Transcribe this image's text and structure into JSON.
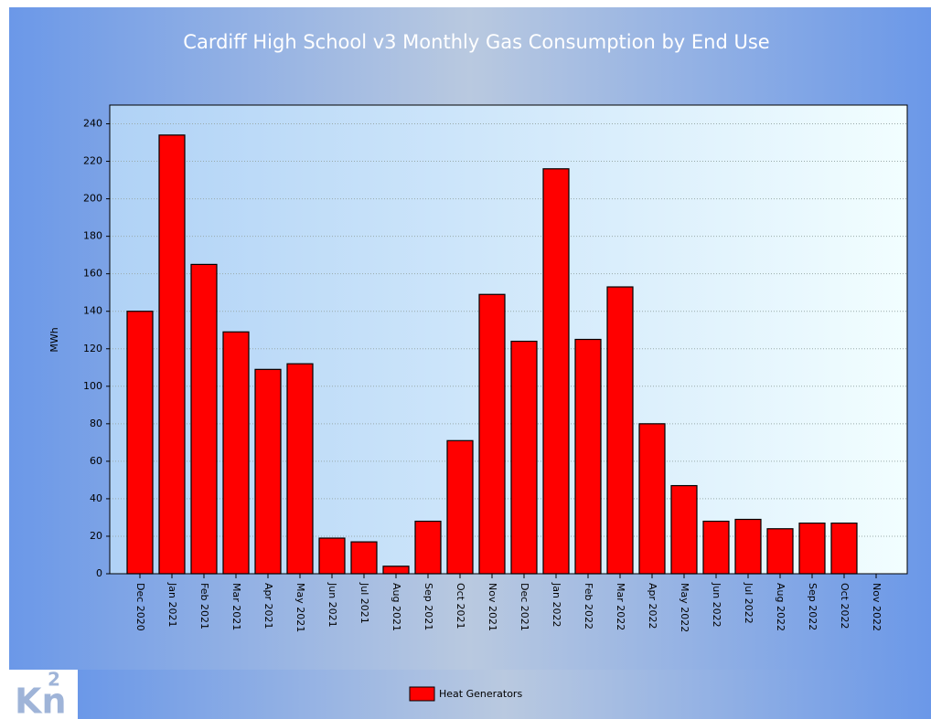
{
  "chart_data": {
    "type": "bar",
    "title": "Cardiff High School v3 Monthly Gas Consumption by End Use",
    "y_label": "MWh",
    "categories": [
      "Dec 2020",
      "Jan 2021",
      "Feb 2021",
      "Mar 2021",
      "Apr 2021",
      "May 2021",
      "Jun 2021",
      "Jul 2021",
      "Aug 2021",
      "Sep 2021",
      "Oct 2021",
      "Nov 2021",
      "Dec 2021",
      "Jan 2022",
      "Feb 2022",
      "Mar 2022",
      "Apr 2022",
      "May 2022",
      "Jun 2022",
      "Jul 2022",
      "Aug 2022",
      "Sep 2022",
      "Oct 2022",
      "Nov 2022"
    ],
    "series": [
      {
        "name": "Heat Generators",
        "color": "#ff0000",
        "values": [
          140,
          234,
          165,
          129,
          109,
          112,
          19,
          17,
          4,
          28,
          71,
          149,
          124,
          216,
          125,
          153,
          80,
          47,
          28,
          29,
          24,
          27,
          27,
          null
        ]
      }
    ],
    "ylim": [
      0,
      250
    ],
    "yticks": [
      0,
      20,
      40,
      60,
      80,
      100,
      120,
      140,
      160,
      180,
      200,
      220,
      240
    ],
    "grid": true,
    "legend": "bottom"
  },
  "logo": {
    "base": "Kn",
    "sup": "2"
  }
}
